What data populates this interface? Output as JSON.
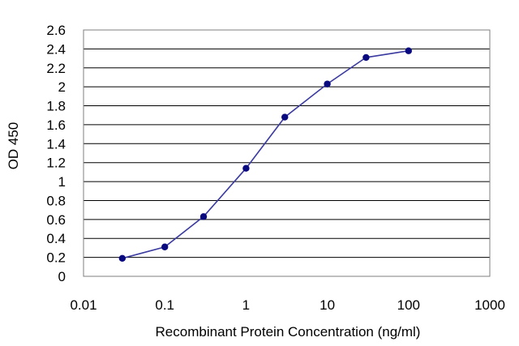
{
  "chart_data": {
    "type": "scatter",
    "title": "",
    "xlabel": "Recombinant Protein Concentration (ng/ml)",
    "ylabel": "OD 450",
    "xscale": "log",
    "xlim": [
      0.01,
      1000
    ],
    "ylim": [
      0,
      2.6
    ],
    "grid": "horizontal",
    "x_ticks": [
      "0.01",
      "0.1",
      "1",
      "10",
      "100",
      "1000"
    ],
    "y_ticks": [
      "0",
      "0.2",
      "0.4",
      "0.6",
      "0.8",
      "1",
      "1.2",
      "1.4",
      "1.6",
      "1.8",
      "2",
      "2.2",
      "2.4",
      "2.6"
    ],
    "series": [
      {
        "x": [
          0.03,
          0.1,
          0.3,
          1,
          3,
          10,
          30,
          100
        ],
        "y": [
          0.19,
          0.31,
          0.63,
          1.14,
          1.68,
          2.03,
          2.31,
          2.38
        ]
      }
    ],
    "colors": {
      "series": "#3a3aa0",
      "marker": "#0a0a80",
      "grid": "#000000",
      "frame": "#7f7f7f"
    }
  }
}
